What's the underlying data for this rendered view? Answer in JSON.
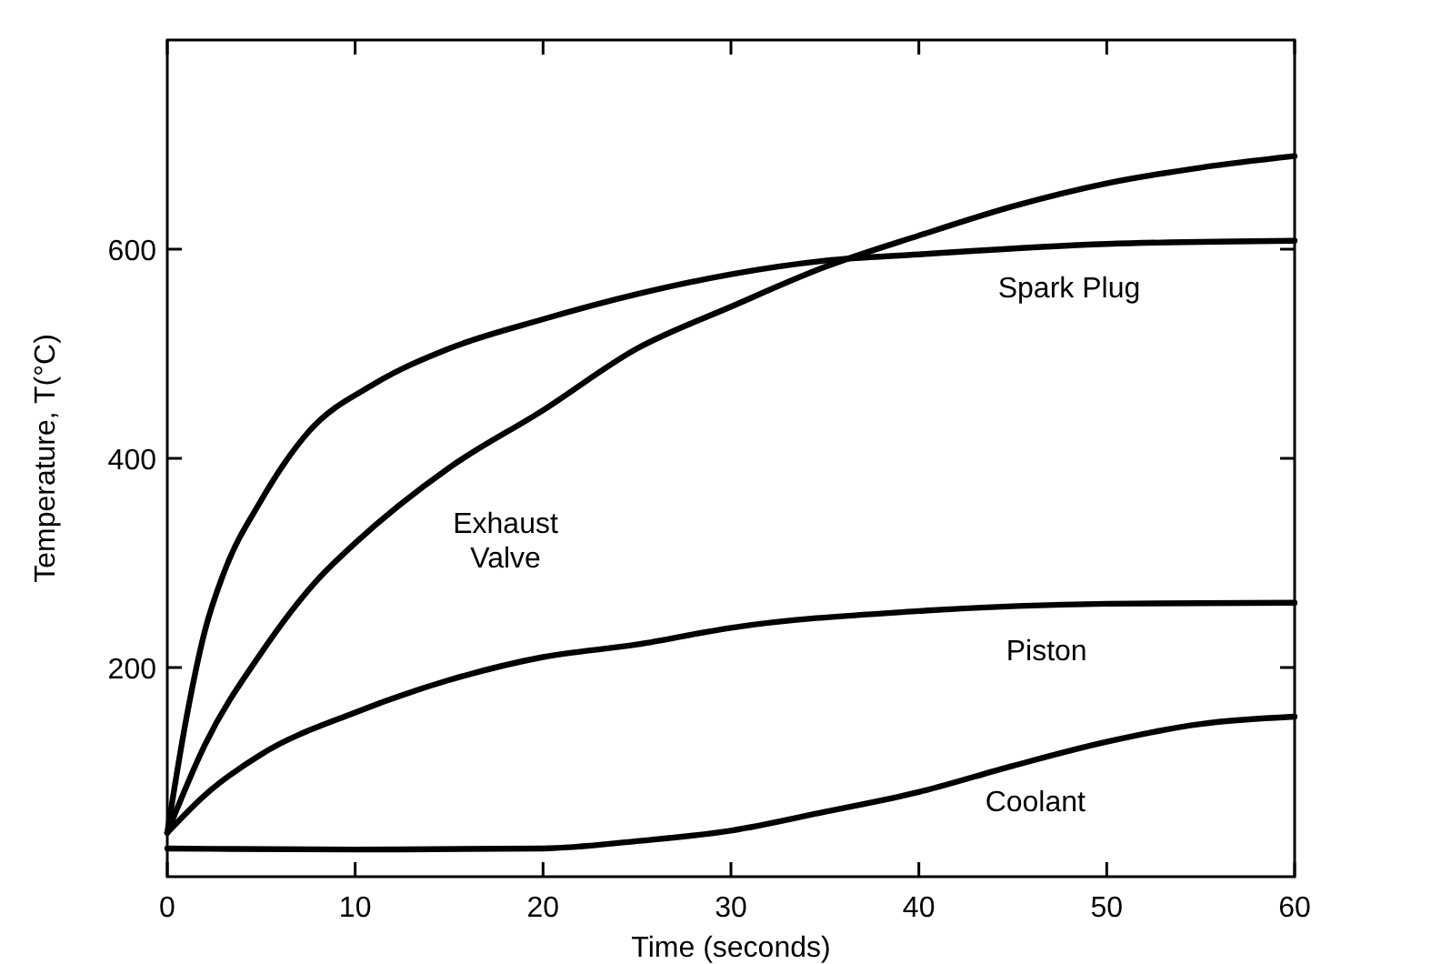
{
  "chart_data": {
    "type": "line",
    "xlabel": "Time (seconds)",
    "ylabel": "Temperature, T(°C)",
    "xlim": [
      0,
      60
    ],
    "ylim": [
      0,
      800
    ],
    "xticks": [
      0,
      10,
      20,
      30,
      40,
      50,
      60
    ],
    "yticks": [
      200,
      400,
      600
    ],
    "grid": false,
    "marker": "none",
    "line_style": "solid",
    "series": [
      {
        "name": "Spark Plug",
        "color": "#000000",
        "x": [
          0,
          1,
          2,
          3,
          5,
          7.5,
          11,
          15,
          20,
          25,
          30,
          35,
          40,
          50,
          60
        ],
        "values": [
          42,
          150,
          235,
          290,
          360,
          425,
          471,
          505,
          533,
          557,
          576,
          589,
          595,
          605,
          608
        ]
      },
      {
        "name": "Exhaust Valve",
        "color": "#000000",
        "x": [
          0,
          2,
          5,
          8,
          10,
          15,
          20,
          25,
          30,
          35,
          40,
          45,
          50,
          55,
          60
        ],
        "values": [
          42,
          126,
          214,
          284,
          319,
          391,
          446,
          505,
          545,
          583,
          613,
          641,
          663,
          678,
          689
        ]
      },
      {
        "name": "Piston",
        "color": "#000000",
        "x": [
          0,
          2,
          5,
          10,
          15,
          20,
          25,
          30,
          40,
          50,
          60
        ],
        "values": [
          42,
          78,
          117,
          157,
          188,
          210,
          222,
          238,
          254,
          261,
          262
        ]
      },
      {
        "name": "Coolant",
        "color": "#000000",
        "x": [
          0,
          10,
          20,
          25,
          30,
          35,
          40,
          45,
          50,
          55,
          60
        ],
        "values": [
          27,
          26,
          27,
          34,
          44,
          62,
          81,
          106,
          129,
          146,
          153
        ]
      }
    ]
  }
}
